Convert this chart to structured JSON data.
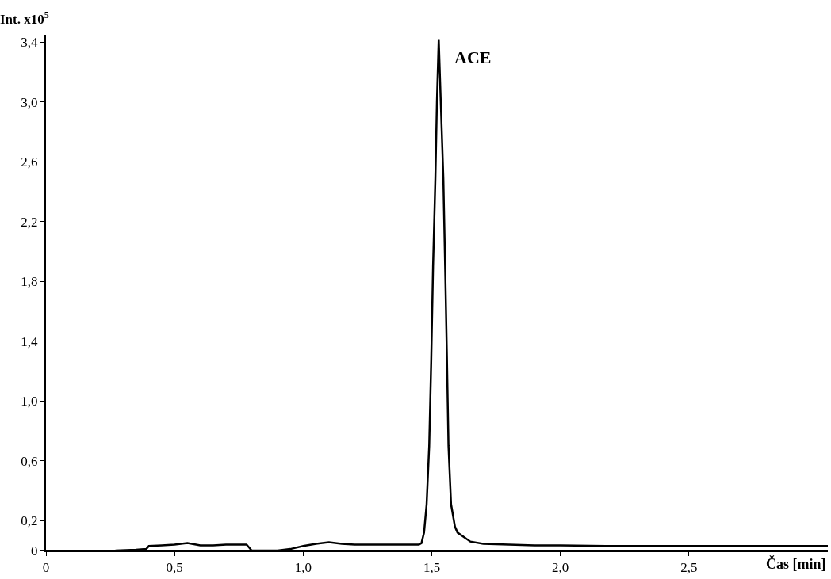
{
  "chart_data": {
    "type": "line",
    "xlabel": "Čas [min]",
    "ylabel": "Int. x10$^{5}$",
    "x": [
      0.27,
      0.35,
      0.39,
      0.4,
      0.45,
      0.5,
      0.55,
      0.6,
      0.65,
      0.7,
      0.75,
      0.78,
      0.79,
      0.8,
      0.85,
      0.9,
      0.95,
      1.0,
      1.05,
      1.1,
      1.15,
      1.2,
      1.3,
      1.4,
      1.45,
      1.46,
      1.47,
      1.48,
      1.49,
      1.498,
      1.505,
      1.514,
      1.52,
      1.527,
      1.535,
      1.545,
      1.552,
      1.559,
      1.565,
      1.575,
      1.59,
      1.6,
      1.65,
      1.7,
      1.8,
      1.9,
      2.0,
      2.2,
      2.4,
      2.6,
      2.8,
      3.0,
      3.04
    ],
    "series": [
      {
        "color": "#000000",
        "values": [
          0,
          0.005,
          0.01,
          0.03,
          0.035,
          0.04,
          0.05,
          0.035,
          0.035,
          0.04,
          0.04,
          0.04,
          0.02,
          0,
          0,
          0,
          0.01,
          0.03,
          0.045,
          0.055,
          0.045,
          0.04,
          0.04,
          0.04,
          0.04,
          0.05,
          0.12,
          0.31,
          0.7,
          1.28,
          1.9,
          2.49,
          3.0,
          3.42,
          3.0,
          2.49,
          1.9,
          1.28,
          0.7,
          0.31,
          0.16,
          0.12,
          0.06,
          0.045,
          0.04,
          0.035,
          0.035,
          0.03,
          0.03,
          0.03,
          0.03,
          0.03,
          0.03
        ]
      }
    ],
    "annotations": [
      {
        "text": "ACE",
        "x": 1.527,
        "y": 3.42
      }
    ],
    "xlim": [
      0,
      3.04
    ],
    "ylim": [
      0,
      3.45
    ],
    "xticks": [
      0,
      {
        "value": 0.5,
        "label": "0,5"
      },
      {
        "value": 1.0,
        "label": "1,0"
      },
      {
        "value": 1.5,
        "label": "1,5"
      },
      {
        "value": 2.0,
        "label": "2,0"
      },
      {
        "value": 2.5,
        "label": "2,5"
      }
    ],
    "yticks": [
      0,
      {
        "value": 0.2,
        "label": "0,2"
      },
      {
        "value": 0.6,
        "label": "0,6"
      },
      {
        "value": 1.0,
        "label": "1,0"
      },
      {
        "value": 1.4,
        "label": "1,4"
      },
      {
        "value": 1.8,
        "label": "1,8"
      },
      {
        "value": 2.2,
        "label": "2,2"
      },
      {
        "value": 2.6,
        "label": "2,6"
      },
      {
        "value": 3.0,
        "label": "3,0"
      },
      {
        "value": 3.4,
        "label": "3,4"
      }
    ],
    "marker": "none",
    "line_style": "solid"
  }
}
